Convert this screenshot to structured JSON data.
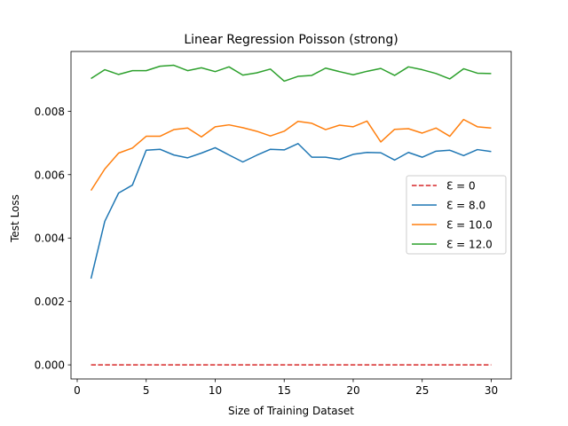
{
  "chart_data": {
    "type": "line",
    "title": "Linear Regression Poisson (strong)",
    "xlabel": "Size of Training Dataset",
    "ylabel": "Test Loss",
    "xlim": [
      -0.45,
      31.45
    ],
    "ylim": [
      -0.000445,
      0.009885
    ],
    "xticks": [
      0,
      5,
      10,
      15,
      20,
      25,
      30
    ],
    "xtick_labels": [
      "0",
      "5",
      "10",
      "15",
      "20",
      "25",
      "30"
    ],
    "yticks": [
      0.0,
      0.002,
      0.004,
      0.006,
      0.008
    ],
    "ytick_labels": [
      "0.000",
      "0.002",
      "0.004",
      "0.006",
      "0.008"
    ],
    "grid": false,
    "legend_position": "center-right",
    "x": [
      1,
      2,
      3,
      4,
      5,
      6,
      7,
      8,
      9,
      10,
      11,
      12,
      13,
      14,
      15,
      16,
      17,
      18,
      19,
      20,
      21,
      22,
      23,
      24,
      25,
      26,
      27,
      28,
      29,
      30
    ],
    "series": [
      {
        "name": "Ɛ = 0",
        "color": "#d62728",
        "dash": "dashed",
        "values": [
          0.0,
          0.0,
          0.0,
          0.0,
          0.0,
          0.0,
          0.0,
          0.0,
          0.0,
          0.0,
          0.0,
          0.0,
          0.0,
          0.0,
          0.0,
          0.0,
          0.0,
          0.0,
          0.0,
          0.0,
          0.0,
          0.0,
          0.0,
          0.0,
          0.0,
          0.0,
          0.0,
          0.0,
          0.0,
          0.0
        ]
      },
      {
        "name": "Ɛ = 8.0",
        "color": "#1f77b4",
        "dash": "solid",
        "values": [
          0.00272,
          0.00453,
          0.00542,
          0.00567,
          0.00677,
          0.0068,
          0.00662,
          0.00653,
          0.00668,
          0.00685,
          0.00662,
          0.0064,
          0.00661,
          0.0068,
          0.00678,
          0.00698,
          0.00655,
          0.00655,
          0.00648,
          0.00664,
          0.0067,
          0.00669,
          0.00646,
          0.0067,
          0.00655,
          0.00674,
          0.00677,
          0.0066,
          0.00679,
          0.00673
        ]
      },
      {
        "name": "Ɛ = 10.0",
        "color": "#ff7f0e",
        "dash": "solid",
        "values": [
          0.0055,
          0.00618,
          0.00668,
          0.00684,
          0.00721,
          0.00721,
          0.00742,
          0.00747,
          0.00719,
          0.00751,
          0.00757,
          0.00748,
          0.00737,
          0.00722,
          0.00737,
          0.00768,
          0.00762,
          0.00742,
          0.00756,
          0.00751,
          0.00769,
          0.00703,
          0.00743,
          0.00745,
          0.00731,
          0.00747,
          0.00721,
          0.00774,
          0.00751,
          0.00747
        ]
      },
      {
        "name": "Ɛ = 12.0",
        "color": "#2ca02c",
        "dash": "solid",
        "values": [
          0.00903,
          0.00931,
          0.00916,
          0.00928,
          0.00928,
          0.00942,
          0.00945,
          0.00928,
          0.00937,
          0.00925,
          0.0094,
          0.00914,
          0.00921,
          0.00933,
          0.00895,
          0.0091,
          0.00913,
          0.00936,
          0.00925,
          0.00915,
          0.00926,
          0.00935,
          0.00913,
          0.0094,
          0.00931,
          0.00919,
          0.00902,
          0.00934,
          0.0092,
          0.00919
        ]
      }
    ]
  }
}
